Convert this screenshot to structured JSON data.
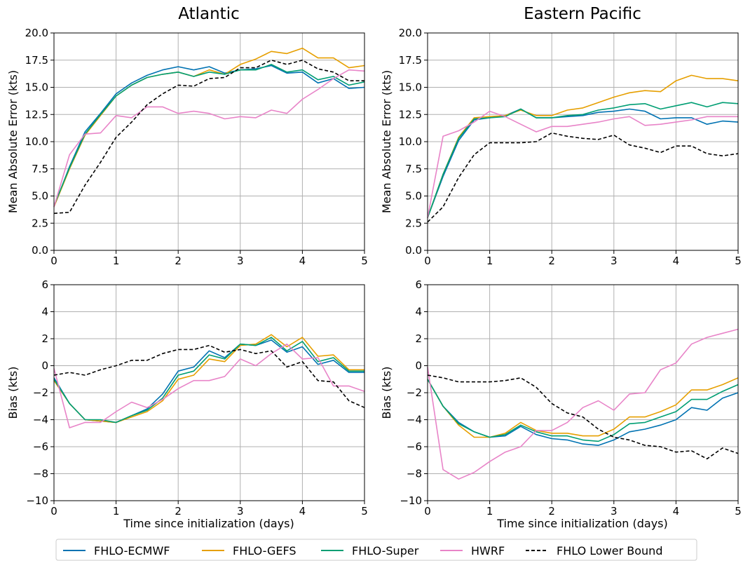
{
  "chart_data": [
    {
      "type": "line",
      "title": "Atlantic",
      "xlabel": "",
      "ylabel": "Mean Absolute Error (kts)",
      "xlim": [
        0,
        5
      ],
      "ylim": [
        0,
        20
      ],
      "xticks": [
        "0",
        "1",
        "2",
        "3",
        "4",
        "5"
      ],
      "yticks": [
        "0.0",
        "2.5",
        "5.0",
        "7.5",
        "10.0",
        "12.5",
        "15.0",
        "17.5",
        "20.0"
      ],
      "grid": true,
      "x": [
        0,
        0.25,
        0.5,
        0.75,
        1,
        1.25,
        1.5,
        1.75,
        2,
        2.25,
        2.5,
        2.75,
        3,
        3.25,
        3.5,
        3.75,
        4,
        4.25,
        4.5,
        4.75,
        5
      ],
      "series": [
        {
          "name": "FHLO-ECMWF",
          "values": [
            4.0,
            7.7,
            10.9,
            12.6,
            14.4,
            15.4,
            16.1,
            16.6,
            16.9,
            16.6,
            16.9,
            16.3,
            16.6,
            16.7,
            17.0,
            16.3,
            16.4,
            15.4,
            15.8,
            14.9,
            15.0
          ]
        },
        {
          "name": "FHLO-GEFS",
          "values": [
            4.0,
            7.5,
            10.6,
            12.4,
            14.2,
            15.2,
            15.9,
            16.2,
            16.4,
            16.0,
            16.6,
            16.2,
            17.1,
            17.6,
            18.3,
            18.1,
            18.6,
            17.7,
            17.7,
            16.8,
            17.0
          ]
        },
        {
          "name": "FHLO-Super",
          "values": [
            4.1,
            7.6,
            10.7,
            12.5,
            14.2,
            15.2,
            15.9,
            16.2,
            16.4,
            16.0,
            16.4,
            16.2,
            16.6,
            16.6,
            17.1,
            16.4,
            16.6,
            15.7,
            16.0,
            15.2,
            15.5
          ]
        },
        {
          "name": "HWRF",
          "values": [
            4.0,
            8.8,
            10.7,
            10.8,
            12.4,
            12.2,
            13.2,
            13.2,
            12.6,
            12.8,
            12.6,
            12.1,
            12.3,
            12.2,
            12.9,
            12.6,
            13.9,
            14.8,
            15.8,
            16.6,
            16.5
          ]
        },
        {
          "name": "FHLO Lower Bound",
          "values": [
            3.4,
            3.5,
            6.0,
            8.1,
            10.4,
            11.8,
            13.4,
            14.4,
            15.2,
            15.1,
            15.8,
            15.9,
            16.8,
            16.8,
            17.5,
            17.1,
            17.5,
            16.7,
            16.4,
            15.6,
            15.6
          ]
        }
      ]
    },
    {
      "type": "line",
      "title": "Eastern Pacific",
      "xlabel": "",
      "ylabel": "Mean Absolute Error (kts)",
      "xlim": [
        0,
        5
      ],
      "ylim": [
        0,
        20
      ],
      "xticks": [
        "0",
        "1",
        "2",
        "3",
        "4",
        "5"
      ],
      "yticks": [
        "0.0",
        "2.5",
        "5.0",
        "7.5",
        "10.0",
        "12.5",
        "15.0",
        "17.5",
        "20.0"
      ],
      "grid": true,
      "x": [
        0,
        0.25,
        0.5,
        0.75,
        1,
        1.25,
        1.5,
        1.75,
        2,
        2.25,
        2.5,
        2.75,
        3,
        3.25,
        3.5,
        3.75,
        4,
        4.25,
        4.5,
        4.75,
        5
      ],
      "series": [
        {
          "name": "FHLO-ECMWF",
          "values": [
            3.0,
            6.8,
            10.1,
            12.0,
            12.2,
            12.4,
            13.0,
            12.2,
            12.2,
            12.3,
            12.4,
            12.7,
            12.8,
            13.0,
            12.8,
            12.1,
            12.2,
            12.2,
            11.6,
            11.9,
            11.8
          ]
        },
        {
          "name": "FHLO-GEFS",
          "values": [
            3.0,
            7.0,
            10.4,
            12.2,
            12.3,
            12.4,
            12.9,
            12.4,
            12.4,
            12.9,
            13.1,
            13.6,
            14.1,
            14.5,
            14.7,
            14.6,
            15.6,
            16.1,
            15.8,
            15.8,
            15.6
          ]
        },
        {
          "name": "FHLO-Super",
          "values": [
            3.0,
            7.0,
            10.3,
            12.1,
            12.2,
            12.3,
            13.0,
            12.2,
            12.2,
            12.4,
            12.5,
            12.9,
            13.1,
            13.4,
            13.5,
            13.0,
            13.3,
            13.6,
            13.2,
            13.6,
            13.5
          ]
        },
        {
          "name": "HWRF",
          "values": [
            3.0,
            10.5,
            11.0,
            11.8,
            12.8,
            12.3,
            11.6,
            10.9,
            11.4,
            11.4,
            11.6,
            11.8,
            12.1,
            12.3,
            11.5,
            11.6,
            11.8,
            12.0,
            12.3,
            12.3,
            12.3
          ]
        },
        {
          "name": "FHLO Lower Bound",
          "values": [
            2.6,
            4.0,
            6.7,
            8.8,
            9.9,
            9.9,
            9.9,
            10.0,
            10.8,
            10.5,
            10.3,
            10.2,
            10.6,
            9.7,
            9.4,
            9.0,
            9.6,
            9.6,
            8.9,
            8.7,
            8.9
          ]
        }
      ]
    },
    {
      "type": "line",
      "title": "",
      "xlabel": "Time since initialization (days)",
      "ylabel": "Bias (kts)",
      "xlim": [
        0,
        5
      ],
      "ylim": [
        -10,
        6
      ],
      "xticks": [
        "0",
        "1",
        "2",
        "3",
        "4",
        "5"
      ],
      "yticks": [
        "−10",
        "−8",
        "−6",
        "−4",
        "−2",
        "0",
        "2",
        "4",
        "6"
      ],
      "grid": true,
      "x": [
        0,
        0.25,
        0.5,
        0.75,
        1,
        1.25,
        1.5,
        1.75,
        2,
        2.25,
        2.5,
        2.75,
        3,
        3.25,
        3.5,
        3.75,
        4,
        4.25,
        4.5,
        4.75,
        5
      ],
      "series": [
        {
          "name": "FHLO-ECMWF",
          "values": [
            -0.9,
            -2.8,
            -4.0,
            -4.1,
            -4.2,
            -3.7,
            -3.2,
            -2.1,
            -0.4,
            -0.1,
            1.1,
            0.6,
            1.6,
            1.5,
            1.9,
            1.0,
            1.4,
            0.1,
            0.4,
            -0.5,
            -0.5
          ]
        },
        {
          "name": "FHLO-GEFS",
          "values": [
            -1.1,
            -2.8,
            -4.0,
            -4.1,
            -4.2,
            -3.8,
            -3.4,
            -2.6,
            -1.0,
            -0.7,
            0.5,
            0.3,
            1.5,
            1.6,
            2.3,
            1.4,
            2.1,
            0.7,
            0.8,
            -0.3,
            -0.3
          ]
        },
        {
          "name": "FHLO-Super",
          "values": [
            -1.0,
            -2.8,
            -4.0,
            -4.0,
            -4.2,
            -3.7,
            -3.3,
            -2.4,
            -0.7,
            -0.4,
            0.8,
            0.5,
            1.6,
            1.5,
            2.1,
            1.1,
            1.8,
            0.3,
            0.6,
            -0.4,
            -0.4
          ]
        },
        {
          "name": "HWRF",
          "values": [
            -0.2,
            -4.6,
            -4.2,
            -4.2,
            -3.4,
            -2.7,
            -3.1,
            -2.5,
            -1.7,
            -1.1,
            -1.1,
            -0.8,
            0.5,
            0.0,
            0.9,
            1.6,
            0.5,
            0.6,
            -1.5,
            -1.5,
            -1.9
          ]
        },
        {
          "name": "FHLO Lower Bound",
          "values": [
            -0.7,
            -0.5,
            -0.7,
            -0.3,
            0.0,
            0.4,
            0.4,
            0.9,
            1.2,
            1.2,
            1.5,
            1.0,
            1.2,
            0.9,
            1.1,
            -0.1,
            0.3,
            -1.1,
            -1.2,
            -2.6,
            -3.1
          ]
        }
      ]
    },
    {
      "type": "line",
      "title": "",
      "xlabel": "Time since initialization (days)",
      "ylabel": "Bias (kts)",
      "xlim": [
        0,
        5
      ],
      "ylim": [
        -10,
        6
      ],
      "xticks": [
        "0",
        "1",
        "2",
        "3",
        "4",
        "5"
      ],
      "yticks": [
        "−10",
        "−8",
        "−6",
        "−4",
        "−2",
        "0",
        "2",
        "4",
        "6"
      ],
      "grid": true,
      "x": [
        0,
        0.25,
        0.5,
        0.75,
        1,
        1.25,
        1.5,
        1.75,
        2,
        2.25,
        2.5,
        2.75,
        3,
        3.25,
        3.5,
        3.75,
        4,
        4.25,
        4.5,
        4.75,
        5
      ],
      "series": [
        {
          "name": "FHLO-ECMWF",
          "values": [
            -1.0,
            -3.0,
            -4.2,
            -4.9,
            -5.3,
            -5.2,
            -4.5,
            -5.1,
            -5.4,
            -5.5,
            -5.8,
            -5.9,
            -5.5,
            -4.9,
            -4.7,
            -4.4,
            -4.0,
            -3.1,
            -3.3,
            -2.4,
            -2.0
          ]
        },
        {
          "name": "FHLO-GEFS",
          "values": [
            -1.0,
            -3.0,
            -4.4,
            -5.3,
            -5.3,
            -5.0,
            -4.2,
            -4.8,
            -5.0,
            -5.0,
            -5.2,
            -5.2,
            -4.7,
            -3.8,
            -3.8,
            -3.4,
            -2.9,
            -1.8,
            -1.8,
            -1.4,
            -0.9
          ]
        },
        {
          "name": "FHLO-Super",
          "values": [
            -1.0,
            -3.0,
            -4.3,
            -4.9,
            -5.3,
            -5.1,
            -4.4,
            -4.9,
            -5.2,
            -5.2,
            -5.5,
            -5.6,
            -5.1,
            -4.3,
            -4.2,
            -3.8,
            -3.4,
            -2.5,
            -2.5,
            -1.9,
            -1.4
          ]
        },
        {
          "name": "HWRF",
          "values": [
            -0.1,
            -7.7,
            -8.4,
            -7.9,
            -7.1,
            -6.4,
            -6.0,
            -4.8,
            -4.8,
            -4.2,
            -3.1,
            -2.6,
            -3.3,
            -2.1,
            -2.0,
            -0.3,
            0.2,
            1.6,
            2.1,
            2.4,
            2.7
          ]
        },
        {
          "name": "FHLO Lower Bound",
          "values": [
            -0.7,
            -0.9,
            -1.2,
            -1.2,
            -1.2,
            -1.1,
            -0.9,
            -1.6,
            -2.8,
            -3.5,
            -3.8,
            -4.7,
            -5.3,
            -5.5,
            -5.9,
            -6.0,
            -6.4,
            -6.3,
            -6.9,
            -6.1,
            -6.5
          ]
        }
      ]
    }
  ],
  "legend": {
    "placement": "bottom-center",
    "items": [
      {
        "label": "FHLO-ECMWF",
        "color": "#0072b2",
        "dashed": false
      },
      {
        "label": "FHLO-GEFS",
        "color": "#e69f00",
        "dashed": false
      },
      {
        "label": "FHLO-Super",
        "color": "#009e73",
        "dashed": false
      },
      {
        "label": "HWRF",
        "color": "#e884c8",
        "dashed": false
      },
      {
        "label": "FHLO Lower Bound",
        "color": "#000000",
        "dashed": true
      }
    ]
  }
}
